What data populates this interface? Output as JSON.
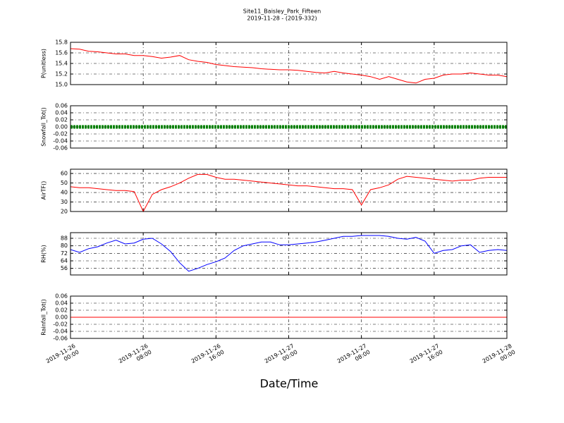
{
  "chart_data": {
    "type": "line",
    "title": "Site11_Baisley_Park_Fifteen",
    "subtitle": "2019-11-28 - (2019-332)",
    "xlabel": "Date/Time",
    "grid": true,
    "xlim": [
      "2019-11-26 00:00",
      "2019-11-28 00:00"
    ],
    "xticks": [
      "2019-11-26 00:00",
      "2019-11-26 08:00",
      "2019-11-26 16:00",
      "2019-11-27 00:00",
      "2019-11-27 08:00",
      "2019-11-27 16:00",
      "2019-11-28 00:00"
    ],
    "x": [
      "2019-11-26 00:00",
      "2019-11-26 01:00",
      "2019-11-26 02:00",
      "2019-11-26 03:00",
      "2019-11-26 04:00",
      "2019-11-26 05:00",
      "2019-11-26 06:00",
      "2019-11-26 07:00",
      "2019-11-26 08:00",
      "2019-11-26 09:00",
      "2019-11-26 10:00",
      "2019-11-26 11:00",
      "2019-11-26 12:00",
      "2019-11-26 13:00",
      "2019-11-26 14:00",
      "2019-11-26 15:00",
      "2019-11-26 16:00",
      "2019-11-26 17:00",
      "2019-11-26 18:00",
      "2019-11-26 19:00",
      "2019-11-26 20:00",
      "2019-11-26 21:00",
      "2019-11-26 22:00",
      "2019-11-26 23:00",
      "2019-11-27 00:00",
      "2019-11-27 01:00",
      "2019-11-27 02:00",
      "2019-11-27 03:00",
      "2019-11-27 04:00",
      "2019-11-27 05:00",
      "2019-11-27 06:00",
      "2019-11-27 07:00",
      "2019-11-27 08:00",
      "2019-11-27 09:00",
      "2019-11-27 10:00",
      "2019-11-27 11:00",
      "2019-11-27 12:00",
      "2019-11-27 13:00",
      "2019-11-27 14:00",
      "2019-11-27 15:00",
      "2019-11-27 16:00",
      "2019-11-27 17:00",
      "2019-11-27 18:00",
      "2019-11-27 19:00",
      "2019-11-27 20:00",
      "2019-11-27 21:00",
      "2019-11-27 22:00",
      "2019-11-27 23:00",
      "2019-11-28 00:00"
    ],
    "panels": [
      {
        "ylabel": "P(unitless)",
        "ylim": [
          15.0,
          15.8
        ],
        "yticks": [
          {
            "value": 15.0,
            "label": "15.0"
          },
          15.2,
          15.4,
          15.6,
          15.8
        ],
        "series": [
          {
            "color": "#ff0000",
            "marker": false,
            "values": [
              15.68,
              15.67,
              15.63,
              15.62,
              15.6,
              15.58,
              15.58,
              15.55,
              15.55,
              15.53,
              15.5,
              15.52,
              15.55,
              15.47,
              15.44,
              15.42,
              15.38,
              15.36,
              15.34,
              15.33,
              15.32,
              15.3,
              15.29,
              15.28,
              15.28,
              15.27,
              15.25,
              15.23,
              15.22,
              15.25,
              15.22,
              15.2,
              15.18,
              15.15,
              15.1,
              15.15,
              15.1,
              15.05,
              15.03,
              15.1,
              15.12,
              15.18,
              15.2,
              15.2,
              15.22,
              15.2,
              15.18,
              15.18,
              15.15
            ]
          }
        ]
      },
      {
        "ylabel": "Snowfall_Tot()",
        "ylim": [
          -0.06,
          0.06
        ],
        "yticks": [
          -0.06,
          -0.04,
          -0.02,
          {
            "value": 0,
            "label": "0.00"
          },
          0.02,
          0.04,
          0.06
        ],
        "series": [
          {
            "color": "#008000",
            "marker": true,
            "values": [
              0,
              0,
              0,
              0,
              0,
              0,
              0,
              0,
              0,
              0,
              0,
              0,
              0,
              0,
              0,
              0,
              0,
              0,
              0,
              0,
              0,
              0,
              0,
              0,
              0,
              0,
              0,
              0,
              0,
              0,
              0,
              0,
              0,
              0,
              0,
              0,
              0,
              0,
              0,
              0,
              0,
              0,
              0,
              0,
              0,
              0,
              0,
              0,
              0
            ]
          }
        ]
      },
      {
        "ylabel": "AirTF()",
        "ylim": [
          20,
          64.5
        ],
        "yticks": [
          20,
          30,
          40,
          50,
          60
        ],
        "series": [
          {
            "color": "#ff0000",
            "marker": false,
            "values": [
              46,
              45,
              45,
              44,
              43,
              42,
              42,
              41,
              20,
              38,
              43,
              46,
              50,
              55,
              59,
              59,
              56,
              54,
              54,
              53,
              52,
              51,
              50,
              49,
              48,
              47,
              47,
              46,
              45,
              44,
              44,
              43,
              27,
              43,
              45,
              48,
              54,
              57,
              56,
              55,
              54,
              53,
              52,
              53,
              53,
              55,
              56,
              56,
              56
            ]
          }
        ]
      },
      {
        "ylabel": "RH(%)",
        "ylim": [
          49,
          94
        ],
        "yticks": [
          56,
          64,
          72,
          80,
          88
        ],
        "series": [
          {
            "color": "#0000ff",
            "marker": false,
            "values": [
              76,
              73,
              77,
              79,
              83,
              86,
              82,
              83,
              87,
              88,
              82,
              74,
              62,
              53,
              56,
              60,
              63,
              67,
              75,
              80,
              82,
              84,
              84,
              81,
              81,
              82,
              83,
              84,
              86,
              88,
              90,
              90,
              91,
              91,
              91,
              90,
              88,
              87,
              89,
              85,
              72,
              75,
              76,
              80,
              81,
              73,
              75,
              76,
              75
            ]
          }
        ]
      },
      {
        "ylabel": "Rainfall_Tot()",
        "ylim": [
          -0.06,
          0.06
        ],
        "yticks": [
          -0.06,
          -0.04,
          -0.02,
          {
            "value": 0,
            "label": "0.00"
          },
          0.02,
          0.04,
          0.06
        ],
        "series": [
          {
            "color": "#ff0000",
            "marker": false,
            "values": [
              0,
              0,
              0,
              0,
              0,
              0,
              0,
              0,
              0,
              0,
              0,
              0,
              0,
              0,
              0,
              0,
              0,
              0,
              0,
              0,
              0,
              0,
              0,
              0,
              0,
              0,
              0,
              0,
              0,
              0,
              0,
              0,
              0,
              0,
              0,
              0,
              0,
              0,
              0,
              0,
              0,
              0,
              0,
              0,
              0,
              0,
              0,
              0,
              0
            ]
          }
        ]
      }
    ]
  }
}
